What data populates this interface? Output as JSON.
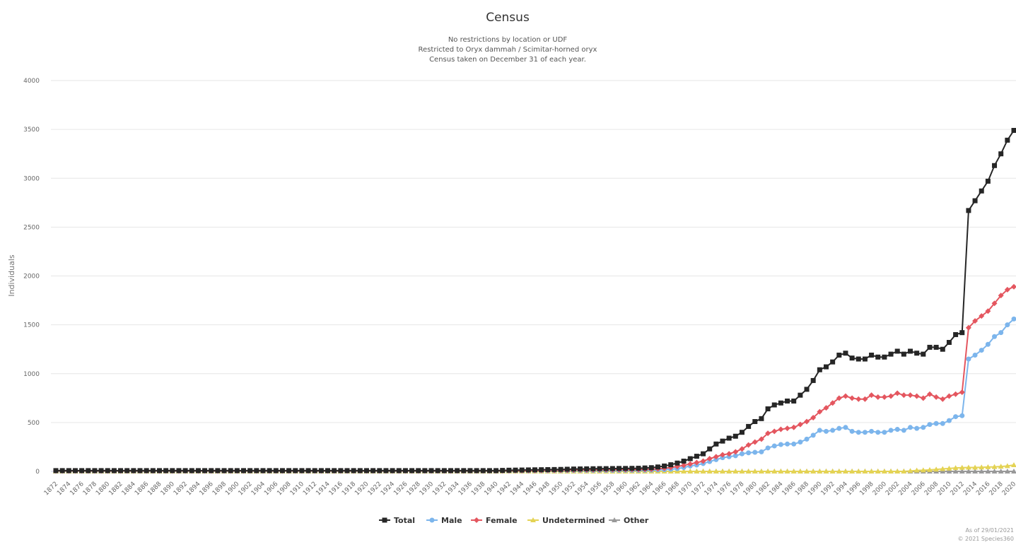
{
  "chart_data": {
    "type": "line",
    "title": "Census",
    "subtitle": [
      "No restrictions by location or UDF",
      "Restricted to Oryx dammah / Scimitar-horned oryx",
      "Census taken on December 31 of each year."
    ],
    "xlabel": "",
    "ylabel": "Individuals",
    "x_start": 1872,
    "x_end": 2020,
    "x_tick_step": 2,
    "ylim": [
      0,
      4000
    ],
    "y_ticks": [
      0,
      500,
      1000,
      1500,
      2000,
      2500,
      3000,
      3500,
      4000
    ],
    "grid": true,
    "legend_position": "bottom-center",
    "credits": [
      "As of 29/01/2021",
      "© 2021 Species360"
    ],
    "series": [
      {
        "name": "Total",
        "color": "#262626",
        "marker": "square",
        "values": [
          8,
          8,
          8,
          8,
          8,
          8,
          8,
          8,
          8,
          8,
          8,
          8,
          8,
          8,
          8,
          8,
          8,
          8,
          8,
          8,
          8,
          8,
          8,
          8,
          8,
          8,
          8,
          8,
          8,
          8,
          8,
          8,
          8,
          8,
          8,
          8,
          8,
          8,
          8,
          8,
          8,
          8,
          8,
          8,
          8,
          8,
          8,
          8,
          8,
          8,
          8,
          8,
          8,
          8,
          8,
          8,
          8,
          8,
          8,
          8,
          8,
          8,
          8,
          8,
          8,
          8,
          8,
          8,
          8,
          10,
          12,
          13,
          14,
          15,
          16,
          17,
          18,
          19,
          20,
          22,
          24,
          25,
          26,
          27,
          28,
          28,
          29,
          30,
          30,
          31,
          32,
          35,
          38,
          45,
          55,
          68,
          85,
          105,
          130,
          155,
          180,
          230,
          280,
          310,
          340,
          360,
          400,
          460,
          510,
          540,
          640,
          680,
          700,
          720,
          720,
          780,
          840,
          930,
          1040,
          1070,
          1120,
          1190,
          1210,
          1160,
          1150,
          1150,
          1190,
          1170,
          1170,
          1200,
          1230,
          1200,
          1230,
          1210,
          1200,
          1270,
          1270,
          1250,
          1320,
          1400,
          1420,
          2670,
          2770,
          2870,
          2970,
          3130,
          3250,
          3390,
          3490
        ]
      },
      {
        "name": "Male",
        "color": "#7cb5ec",
        "marker": "circle",
        "values": [
          3,
          3,
          3,
          3,
          3,
          3,
          3,
          3,
          3,
          3,
          3,
          3,
          3,
          3,
          3,
          3,
          3,
          3,
          3,
          3,
          3,
          3,
          3,
          3,
          3,
          3,
          3,
          3,
          3,
          3,
          3,
          3,
          3,
          3,
          3,
          3,
          3,
          3,
          3,
          3,
          3,
          3,
          3,
          3,
          3,
          3,
          3,
          3,
          3,
          3,
          3,
          3,
          3,
          3,
          3,
          3,
          3,
          3,
          3,
          3,
          3,
          3,
          3,
          3,
          3,
          3,
          3,
          3,
          3,
          4,
          4,
          5,
          5,
          5,
          6,
          6,
          6,
          7,
          7,
          8,
          8,
          9,
          9,
          9,
          10,
          10,
          10,
          10,
          11,
          11,
          11,
          12,
          13,
          15,
          18,
          22,
          28,
          40,
          55,
          65,
          80,
          100,
          120,
          140,
          150,
          160,
          180,
          190,
          195,
          200,
          240,
          260,
          275,
          280,
          280,
          300,
          330,
          370,
          420,
          410,
          420,
          440,
          450,
          410,
          400,
          400,
          410,
          400,
          400,
          420,
          430,
          420,
          450,
          440,
          450,
          480,
          490,
          490,
          520,
          560,
          570,
          1150,
          1190,
          1240,
          1300,
          1380,
          1420,
          1500,
          1560
        ]
      },
      {
        "name": "Female",
        "color": "#e4565f",
        "marker": "diamond",
        "values": [
          5,
          5,
          5,
          5,
          5,
          5,
          5,
          5,
          5,
          5,
          5,
          5,
          5,
          5,
          5,
          5,
          5,
          5,
          5,
          5,
          5,
          5,
          5,
          5,
          5,
          5,
          5,
          5,
          5,
          5,
          5,
          5,
          5,
          5,
          5,
          5,
          5,
          5,
          5,
          5,
          5,
          5,
          5,
          5,
          5,
          5,
          5,
          5,
          5,
          5,
          5,
          5,
          5,
          5,
          5,
          5,
          5,
          5,
          5,
          5,
          5,
          5,
          5,
          5,
          5,
          5,
          5,
          5,
          5,
          6,
          7,
          8,
          8,
          9,
          9,
          10,
          11,
          11,
          12,
          13,
          14,
          15,
          15,
          16,
          17,
          17,
          18,
          18,
          18,
          19,
          19,
          20,
          22,
          26,
          32,
          40,
          50,
          62,
          76,
          90,
          105,
          130,
          150,
          170,
          180,
          200,
          230,
          270,
          300,
          330,
          390,
          410,
          430,
          440,
          450,
          480,
          510,
          550,
          610,
          650,
          700,
          750,
          770,
          750,
          740,
          740,
          780,
          760,
          760,
          770,
          800,
          780,
          780,
          770,
          750,
          790,
          760,
          740,
          770,
          790,
          810,
          1470,
          1540,
          1590,
          1640,
          1720,
          1800,
          1860,
          1890
        ]
      },
      {
        "name": "Undetermined",
        "color": "#e4d354",
        "marker": "triangle",
        "values": [
          0,
          0,
          0,
          0,
          0,
          0,
          0,
          0,
          0,
          0,
          0,
          0,
          0,
          0,
          0,
          0,
          0,
          0,
          0,
          0,
          0,
          0,
          0,
          0,
          0,
          0,
          0,
          0,
          0,
          0,
          0,
          0,
          0,
          0,
          0,
          0,
          0,
          0,
          0,
          0,
          0,
          0,
          0,
          0,
          0,
          0,
          0,
          0,
          0,
          0,
          0,
          0,
          0,
          0,
          0,
          0,
          0,
          0,
          0,
          0,
          0,
          0,
          0,
          0,
          0,
          0,
          0,
          0,
          0,
          0,
          0,
          0,
          0,
          0,
          0,
          0,
          0,
          0,
          0,
          0,
          0,
          0,
          0,
          0,
          0,
          0,
          0,
          0,
          0,
          0,
          0,
          0,
          0,
          0,
          0,
          0,
          0,
          0,
          0,
          0,
          0,
          0,
          0,
          0,
          0,
          0,
          0,
          0,
          0,
          0,
          0,
          0,
          0,
          0,
          0,
          0,
          0,
          0,
          0,
          0,
          0,
          0,
          0,
          0,
          0,
          0,
          0,
          0,
          0,
          0,
          0,
          0,
          5,
          10,
          12,
          15,
          20,
          25,
          30,
          35,
          38,
          40,
          40,
          42,
          44,
          46,
          50,
          55,
          65
        ]
      },
      {
        "name": "Other",
        "color": "#999999",
        "marker": "triangle",
        "values": [
          0,
          0,
          0,
          0,
          0,
          0,
          0,
          0,
          0,
          0,
          0,
          0,
          0,
          0,
          0,
          0,
          0,
          0,
          0,
          0,
          0,
          0,
          0,
          0,
          0,
          0,
          0,
          0,
          0,
          0,
          0,
          0,
          0,
          0,
          0,
          0,
          0,
          0,
          0,
          0,
          0,
          0,
          0,
          0,
          0,
          0,
          0,
          0,
          0,
          0,
          0,
          0,
          0,
          0,
          0,
          0,
          0,
          0,
          0,
          0,
          0,
          0,
          0,
          0,
          0,
          0,
          0,
          0,
          0,
          0,
          0,
          0,
          0,
          0,
          0,
          0,
          0,
          0,
          0,
          0,
          0,
          0,
          0,
          0,
          0,
          0,
          0,
          0,
          0,
          0,
          0,
          0,
          0,
          0,
          0,
          0,
          0,
          0,
          0,
          0,
          0,
          0,
          0,
          0,
          0,
          0,
          0,
          0,
          0,
          0,
          0,
          0,
          0,
          0,
          0,
          0,
          0,
          0,
          0,
          0,
          0,
          0,
          0,
          0,
          0,
          0,
          0,
          0,
          0,
          0,
          0,
          0,
          0,
          0,
          0,
          0,
          0,
          0,
          0,
          0,
          0,
          0,
          0,
          0,
          0,
          0,
          0,
          0,
          0
        ]
      }
    ]
  }
}
